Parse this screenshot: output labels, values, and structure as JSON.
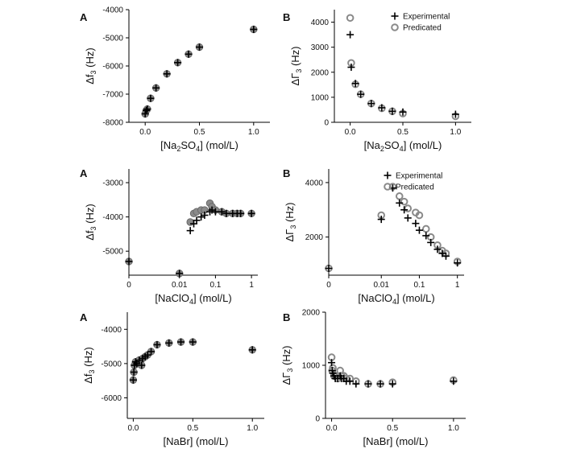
{
  "chart_data": [
    {
      "id": "na2so4-df",
      "type": "scatter",
      "panel_letter": "A",
      "xlabel": "[Na2SO4] (mol/L)",
      "xlabel_parts": [
        "[Na",
        "2",
        "SO",
        "4",
        "] (mol/L)"
      ],
      "ylabel": "Δf3 (Hz)",
      "ylabel_parts": [
        "Δf",
        "3",
        " (Hz)"
      ],
      "xscale": "linear",
      "xlim": [
        -0.15,
        1.15
      ],
      "ylim": [
        -8000,
        -4000
      ],
      "xticks": [
        0.0,
        0.5,
        1.0
      ],
      "xtick_labels": [
        "0.0",
        "0.5",
        "1.0"
      ],
      "yticks": [
        -8000,
        -7000,
        -6000,
        -5000,
        -4000
      ],
      "ytick_labels": [
        "-8000",
        "-7000",
        "-6000",
        "-5000",
        "-4000"
      ],
      "legend": null,
      "series": [
        {
          "name": "Experimental",
          "marker": "plus",
          "x": [
            0.0,
            0.01,
            0.02,
            0.05,
            0.1,
            0.2,
            0.3,
            0.4,
            0.5,
            1.0
          ],
          "y": [
            -7700,
            -7580,
            -7530,
            -7150,
            -6780,
            -6280,
            -5880,
            -5580,
            -5330,
            -4700
          ]
        },
        {
          "name": "Predicated",
          "marker": "filled-circle",
          "x": [
            0.0,
            0.01,
            0.02,
            0.05,
            0.1,
            0.2,
            0.3,
            0.4,
            0.5,
            1.0
          ],
          "y": [
            -7700,
            -7580,
            -7530,
            -7150,
            -6780,
            -6280,
            -5880,
            -5580,
            -5330,
            -4700
          ]
        }
      ]
    },
    {
      "id": "na2so4-dg",
      "type": "scatter",
      "panel_letter": "B",
      "xlabel": "[Na2SO4] (mol/L)",
      "xlabel_parts": [
        "[Na",
        "2",
        "SO",
        "4",
        "] (mol/L)"
      ],
      "ylabel": "ΔΓ3 (Hz)",
      "ylabel_parts": [
        "ΔΓ",
        "3",
        " (Hz)"
      ],
      "xscale": "linear",
      "xlim": [
        -0.15,
        1.15
      ],
      "ylim": [
        0,
        4500
      ],
      "xticks": [
        0.0,
        0.5,
        1.0
      ],
      "xtick_labels": [
        "0.0",
        "0.5",
        "1.0"
      ],
      "yticks": [
        0,
        1000,
        2000,
        3000,
        4000
      ],
      "ytick_labels": [
        "0",
        "1000",
        "2000",
        "3000",
        "4000"
      ],
      "legend": "top-right",
      "series": [
        {
          "name": "Experimental",
          "marker": "plus",
          "x": [
            0.0,
            0.01,
            0.05,
            0.1,
            0.2,
            0.3,
            0.4,
            0.5,
            1.0
          ],
          "y": [
            3500,
            2200,
            1550,
            1120,
            750,
            580,
            440,
            410,
            320
          ]
        },
        {
          "name": "Predicated",
          "marker": "open-circle",
          "x": [
            0.0,
            0.01,
            0.05,
            0.1,
            0.2,
            0.3,
            0.4,
            0.5,
            1.0
          ],
          "y": [
            4170,
            2370,
            1520,
            1120,
            750,
            560,
            440,
            350,
            240
          ]
        }
      ]
    },
    {
      "id": "naclo4-df",
      "type": "scatter",
      "panel_letter": "A",
      "xlabel": "[NaClO4] (mol/L)",
      "xlabel_parts": [
        "[NaClO",
        "4",
        "] (mol/L)"
      ],
      "ylabel": "Δf3 (Hz)",
      "ylabel_parts": [
        "Δf",
        "3",
        " (Hz)"
      ],
      "xscale": "log-with-zero",
      "log_range": [
        0.001,
        1.5
      ],
      "ylim": [
        -5700,
        -2600
      ],
      "xticks": [
        0,
        0.01,
        0.1,
        1
      ],
      "xtick_labels": [
        "0",
        "0.01",
        "0.1",
        "1"
      ],
      "yticks": [
        -5000,
        -4000,
        -3000
      ],
      "ytick_labels": [
        "-5000",
        "-4000",
        "-3000"
      ],
      "legend": null,
      "series": [
        {
          "name": "Experimental",
          "marker": "plus",
          "x": [
            0,
            0.01,
            0.02,
            0.025,
            0.03,
            0.04,
            0.05,
            0.07,
            0.08,
            0.1,
            0.15,
            0.2,
            0.3,
            0.4,
            0.5,
            1.0
          ],
          "y": [
            -5300,
            -5650,
            -4400,
            -4200,
            -4100,
            -4000,
            -3950,
            -3850,
            -3800,
            -3850,
            -3850,
            -3900,
            -3900,
            -3900,
            -3900,
            -3900
          ]
        },
        {
          "name": "Predicated",
          "marker": "filled-circle",
          "x": [
            0,
            0.01,
            0.02,
            0.025,
            0.03,
            0.04,
            0.05,
            0.07,
            0.08,
            0.1,
            0.15,
            0.2,
            0.3,
            0.4,
            0.5,
            1.0
          ],
          "y": [
            -5300,
            -5650,
            -4150,
            -3900,
            -3850,
            -3800,
            -3800,
            -3600,
            -3700,
            -3800,
            -3850,
            -3900,
            -3900,
            -3900,
            -3900,
            -3900
          ]
        }
      ]
    },
    {
      "id": "naclo4-dg",
      "type": "scatter",
      "panel_letter": "B",
      "xlabel": "[NaClO4] (mol/L)",
      "xlabel_parts": [
        "[NaClO",
        "4",
        "] (mol/L)"
      ],
      "ylabel": "ΔΓ3 (Hz)",
      "ylabel_parts": [
        "ΔΓ",
        "3",
        " (Hz)"
      ],
      "xscale": "log-with-zero",
      "log_range": [
        0.001,
        1.5
      ],
      "ylim": [
        600,
        4500
      ],
      "xticks": [
        0,
        0.01,
        0.1,
        1
      ],
      "xtick_labels": [
        "0",
        "0.01",
        "0.1",
        "1"
      ],
      "yticks": [
        2000,
        4000
      ],
      "ytick_labels": [
        "2000",
        "4000"
      ],
      "legend": "top-right",
      "series": [
        {
          "name": "Experimental",
          "marker": "plus",
          "x": [
            0,
            0.01,
            0.02,
            0.03,
            0.04,
            0.05,
            0.08,
            0.1,
            0.15,
            0.2,
            0.3,
            0.4,
            0.5,
            1.0
          ],
          "y": [
            850,
            2650,
            3800,
            3250,
            3000,
            2700,
            2500,
            2250,
            2050,
            1800,
            1550,
            1400,
            1300,
            1050
          ]
        },
        {
          "name": "Predicated",
          "marker": "open-circle",
          "x": [
            0,
            0.01,
            0.02,
            0.03,
            0.04,
            0.05,
            0.08,
            0.1,
            0.15,
            0.2,
            0.3,
            0.4,
            0.5,
            1.0
          ],
          "y": [
            850,
            2800,
            3850,
            3500,
            3300,
            3050,
            2900,
            2800,
            2300,
            2000,
            1700,
            1500,
            1400,
            1100
          ]
        }
      ]
    },
    {
      "id": "nabr-df",
      "type": "scatter",
      "panel_letter": "A",
      "xlabel": "[NaBr] (mol/L)",
      "xlabel_parts": [
        "[NaBr] (mol/L)"
      ],
      "ylabel": "Δf3 (Hz)",
      "ylabel_parts": [
        "Δf",
        "3",
        " (Hz)"
      ],
      "xscale": "linear",
      "xlim": [
        -0.05,
        1.1
      ],
      "ylim": [
        -6600,
        -3500
      ],
      "xticks": [
        0.0,
        0.5,
        1.0
      ],
      "xtick_labels": [
        "0.0",
        "0.5",
        "1.0"
      ],
      "yticks": [
        -6000,
        -5000,
        -4000
      ],
      "ytick_labels": [
        "-6000",
        "-5000",
        "-4000"
      ],
      "legend": null,
      "series": [
        {
          "name": "Experimental",
          "marker": "plus",
          "x": [
            0.0,
            0.005,
            0.01,
            0.02,
            0.03,
            0.05,
            0.07,
            0.08,
            0.1,
            0.12,
            0.15,
            0.2,
            0.3,
            0.4,
            0.5,
            1.0
          ],
          "y": [
            -5480,
            -5250,
            -5050,
            -4950,
            -5000,
            -4900,
            -5050,
            -4850,
            -4800,
            -4750,
            -4650,
            -4450,
            -4400,
            -4370,
            -4370,
            -4600
          ]
        },
        {
          "name": "Predicated",
          "marker": "filled-circle",
          "x": [
            0.0,
            0.005,
            0.01,
            0.02,
            0.03,
            0.05,
            0.07,
            0.08,
            0.1,
            0.12,
            0.15,
            0.2,
            0.3,
            0.4,
            0.5,
            1.0
          ],
          "y": [
            -5480,
            -5250,
            -5050,
            -4950,
            -5000,
            -4900,
            -5050,
            -4850,
            -4800,
            -4750,
            -4650,
            -4450,
            -4400,
            -4370,
            -4370,
            -4600
          ]
        }
      ]
    },
    {
      "id": "nabr-dg",
      "type": "scatter",
      "panel_letter": "B",
      "xlabel": "[NaBr] (mol/L)",
      "xlabel_parts": [
        "[NaBr] (mol/L)"
      ],
      "ylabel": "ΔΓ3 (Hz)",
      "ylabel_parts": [
        "ΔΓ",
        "3",
        " (Hz)"
      ],
      "xscale": "linear",
      "xlim": [
        -0.05,
        1.1
      ],
      "ylim": [
        0,
        2000
      ],
      "xticks": [
        0.0,
        0.5,
        1.0
      ],
      "xtick_labels": [
        "0.0",
        "0.5",
        "1.0"
      ],
      "yticks": [
        0,
        1000,
        2000
      ],
      "ytick_labels": [
        "0",
        "1000",
        "2000"
      ],
      "legend": null,
      "series": [
        {
          "name": "Experimental",
          "marker": "plus",
          "x": [
            0.0,
            0.005,
            0.01,
            0.02,
            0.03,
            0.05,
            0.07,
            0.08,
            0.1,
            0.12,
            0.15,
            0.2,
            0.3,
            0.4,
            0.5,
            1.0
          ],
          "y": [
            1050,
            900,
            850,
            800,
            750,
            750,
            800,
            750,
            750,
            700,
            700,
            650,
            650,
            650,
            650,
            700
          ]
        },
        {
          "name": "Predicated",
          "marker": "open-circle",
          "x": [
            0.0,
            0.005,
            0.01,
            0.02,
            0.03,
            0.05,
            0.07,
            0.08,
            0.1,
            0.12,
            0.15,
            0.2,
            0.3,
            0.4,
            0.5,
            1.0
          ],
          "y": [
            1150,
            900,
            950,
            800,
            800,
            750,
            900,
            800,
            800,
            750,
            750,
            700,
            650,
            650,
            680,
            720
          ]
        }
      ]
    }
  ]
}
